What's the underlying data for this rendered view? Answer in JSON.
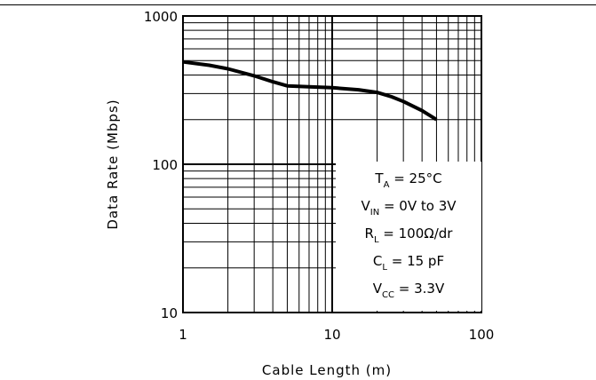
{
  "chart_data": {
    "type": "line",
    "xlabel": "Cable Length (m)",
    "ylabel": "Data Rate (Mbps)",
    "xscale": "log",
    "yscale": "log",
    "xlim": [
      1,
      100
    ],
    "ylim": [
      10,
      1000
    ],
    "grid": true,
    "x_ticks": [
      "1",
      "10",
      "100"
    ],
    "y_ticks": [
      "10",
      "100",
      "1000"
    ],
    "series": [
      {
        "x": [
          1,
          1.5,
          2,
          3,
          4,
          5,
          7,
          10,
          15,
          20,
          25,
          30,
          40,
          50
        ],
        "y": [
          490,
          465,
          440,
          395,
          360,
          338,
          333,
          328,
          318,
          305,
          285,
          265,
          230,
          200
        ]
      }
    ],
    "annotation": [
      {
        "main": "T",
        "sub": "A",
        "rest": " = 25°C"
      },
      {
        "main": "V",
        "sub": "IN",
        "rest": " = 0V to 3V"
      },
      {
        "main": "R",
        "sub": "L",
        "rest": " = 100Ω/dr"
      },
      {
        "main": "C",
        "sub": "L",
        "rest": " = 15 pF"
      },
      {
        "main": "V",
        "sub": "CC",
        "rest": " = 3.3V"
      }
    ]
  }
}
